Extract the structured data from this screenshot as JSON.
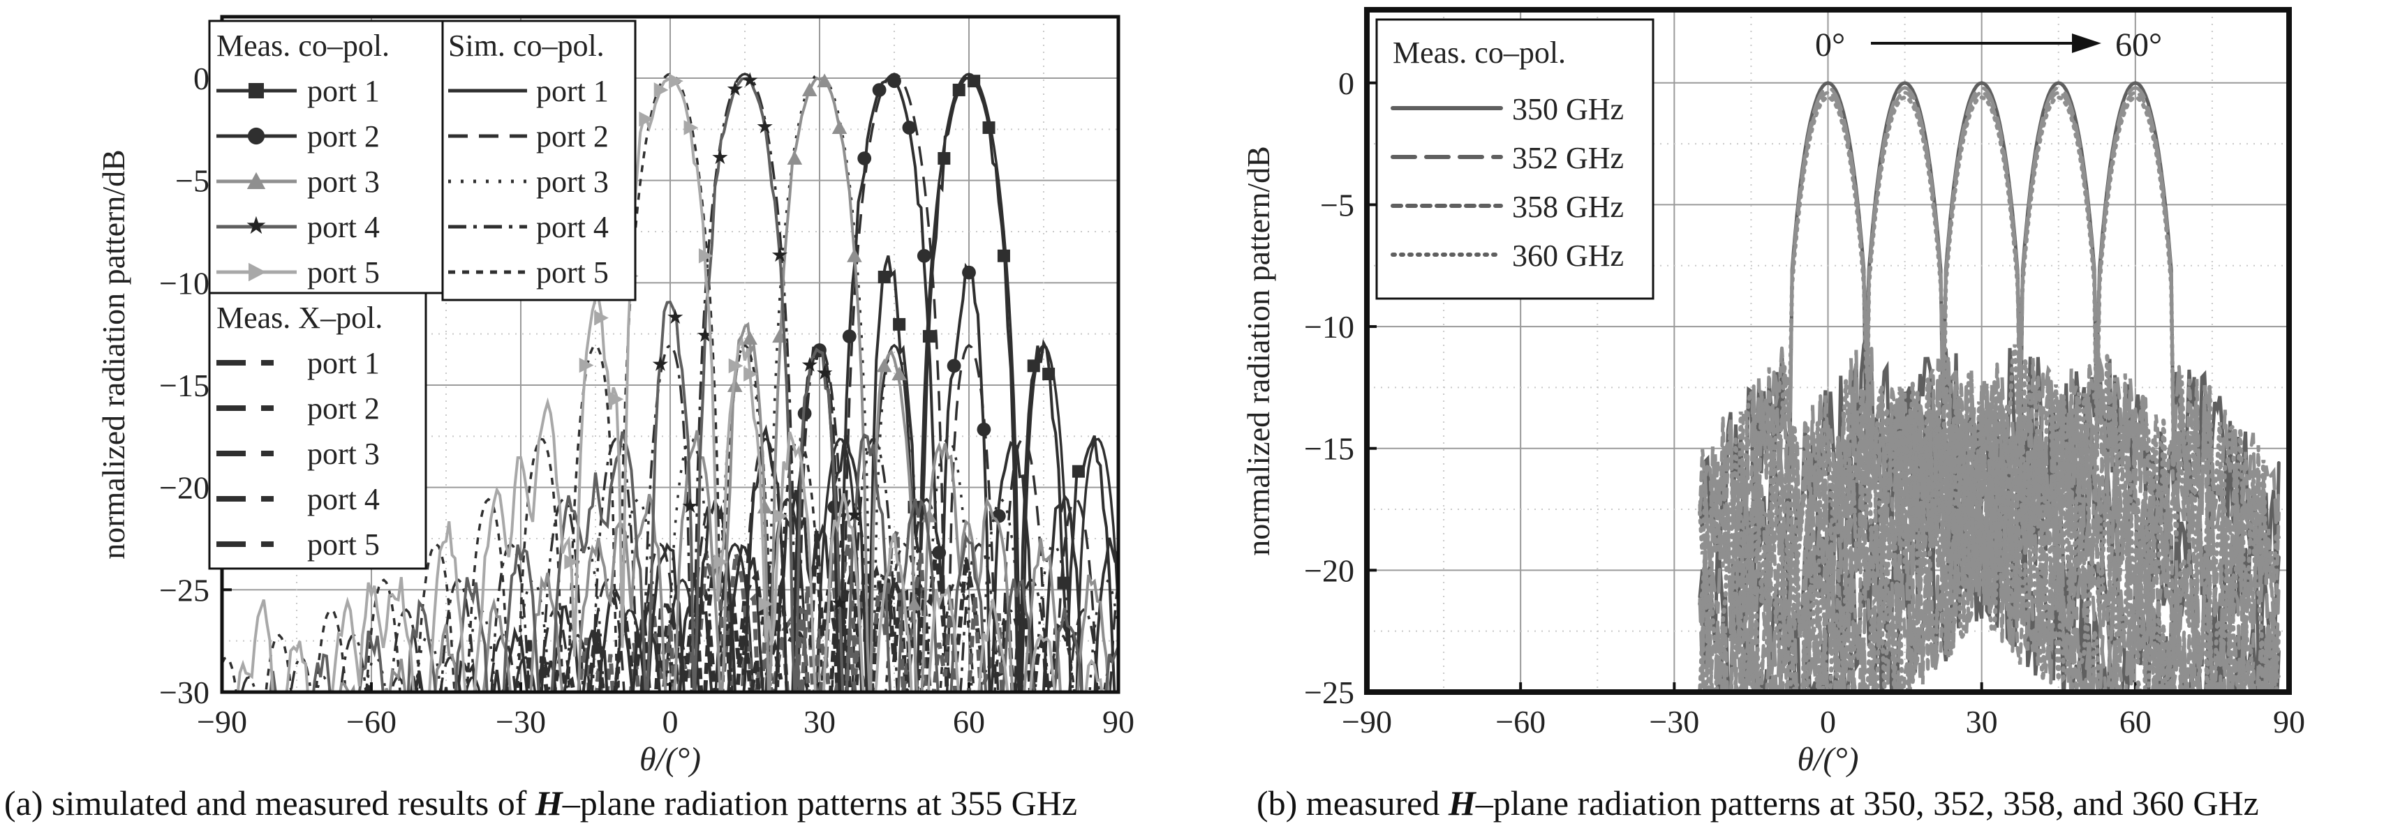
{
  "captions": {
    "a": {
      "prefix": "(a) simulated and measured results of ",
      "bold": "H",
      "suffix": "–plane radiation patterns at 355 GHz"
    },
    "b": {
      "prefix": "(b) measured ",
      "bold": "H",
      "suffix": "–plane radiation patterns at 350, 352, 358, and 360 GHz"
    }
  },
  "colors": {
    "axis": "#111111",
    "grid": "#9a9a9a",
    "dark": "#2f2f2f",
    "mid": "#5f5f5f",
    "light": "#8f8f8f",
    "lighter": "#a8a8a8"
  },
  "chart_data": [
    {
      "id": "a",
      "type": "line",
      "ylabel": "normalized radiation pattern/dB",
      "xlabel": "θ/(°)",
      "xlim": [
        -90,
        90
      ],
      "ylim": [
        -30,
        3
      ],
      "xticks": [
        -90,
        -60,
        -30,
        0,
        30,
        60,
        90
      ],
      "yticks": [
        0,
        -5,
        -10,
        -15,
        -20,
        -25,
        -30
      ],
      "grid": true,
      "legend_placement": "top-left",
      "legend_groups": [
        {
          "title": "Meas. co–pol.",
          "entries": [
            "port 1",
            "port 2",
            "port 3",
            "port 4",
            "port 5"
          ]
        },
        {
          "title": "Meas. X–pol.",
          "entries": [
            "port 1",
            "port 2",
            "port 3",
            "port 4",
            "port 5"
          ]
        },
        {
          "title": "Sim. co–pol.",
          "entries": [
            "port 1",
            "port 2",
            "port 3",
            "port 4",
            "port 5"
          ]
        }
      ],
      "series": [
        {
          "name": "port 1",
          "group": "Meas. co–pol.",
          "marker": "square",
          "color": "dark",
          "beam": 60,
          "sidelobes": [
            [
              44,
              -9
            ],
            [
              76,
              -17
            ],
            [
              83,
              -18.5
            ],
            [
              30,
              -22
            ]
          ]
        },
        {
          "name": "port 2",
          "group": "Meas. co–pol.",
          "marker": "circle",
          "color": "dark",
          "beam": 44,
          "sidelobes": [
            [
              60,
              -9.5
            ],
            [
              28,
              -20
            ],
            [
              70,
              -21
            ],
            [
              78,
              -24
            ]
          ]
        },
        {
          "name": "port 3",
          "group": "Meas. co–pol.",
          "marker": "triangle",
          "color": "light",
          "beam": 30,
          "sidelobes": [
            [
              15,
              -12
            ],
            [
              45,
              -17
            ],
            [
              -10,
              -22
            ],
            [
              60,
              -22
            ]
          ]
        },
        {
          "name": "port 4",
          "group": "Meas. co–pol.",
          "marker": "star",
          "color": "mid",
          "beam": 15,
          "sidelobes": [
            [
              0,
              -11
            ],
            [
              30,
              -14
            ],
            [
              -15,
              -20
            ],
            [
              -30,
              -24
            ]
          ]
        },
        {
          "name": "port 5",
          "group": "Meas. co–pol.",
          "marker": "triangle-right",
          "color": "lighter",
          "beam": 0,
          "sidelobes": [
            [
              -5,
              -2
            ],
            [
              -15,
              -11
            ],
            [
              -25,
              -16
            ],
            [
              -30,
              -19
            ],
            [
              -45,
              -22
            ],
            [
              -60,
              -25
            ],
            [
              -82,
              -26
            ]
          ]
        },
        {
          "name": "port 1",
          "group": "Meas. X–pol.",
          "beam": 55,
          "level": -22
        },
        {
          "name": "port 2",
          "group": "Meas. X–pol.",
          "beam": 40,
          "level": -21
        },
        {
          "name": "port 3",
          "group": "Meas. X–pol.",
          "beam": 25,
          "level": -20
        },
        {
          "name": "port 4",
          "group": "Meas. X–pol.",
          "beam": 10,
          "level": -22
        },
        {
          "name": "port 5",
          "group": "Meas. X–pol.",
          "beam": -5,
          "level": -23
        },
        {
          "name": "port 1",
          "group": "Sim. co–pol.",
          "beam": 60
        },
        {
          "name": "port 2",
          "group": "Sim. co–pol.",
          "beam": 45
        },
        {
          "name": "port 3",
          "group": "Sim. co–pol.",
          "beam": 30
        },
        {
          "name": "port 4",
          "group": "Sim. co–pol.",
          "beam": 15
        },
        {
          "name": "port 5",
          "group": "Sim. co–pol.",
          "beam": 0
        }
      ]
    },
    {
      "id": "b",
      "type": "line",
      "ylabel": "normalized radiation pattern/dB",
      "xlabel": "θ/(°)",
      "xlim": [
        -90,
        90
      ],
      "ylim": [
        -25,
        3
      ],
      "xticks": [
        -90,
        -60,
        -30,
        0,
        30,
        60,
        90
      ],
      "yticks": [
        0,
        -5,
        -10,
        -15,
        -20,
        -25
      ],
      "grid": true,
      "legend_placement": "top-left",
      "legend_title": "Meas. co–pol.",
      "annotation": {
        "start": "0°",
        "end": "60°"
      },
      "beams": [
        0,
        15,
        30,
        45,
        60
      ],
      "series": [
        {
          "name": "350 GHz",
          "dash": "solid"
        },
        {
          "name": "352 GHz",
          "dash": "long-dash"
        },
        {
          "name": "358 GHz",
          "dash": "short-dash"
        },
        {
          "name": "360 GHz",
          "dash": "dotted"
        }
      ]
    }
  ]
}
